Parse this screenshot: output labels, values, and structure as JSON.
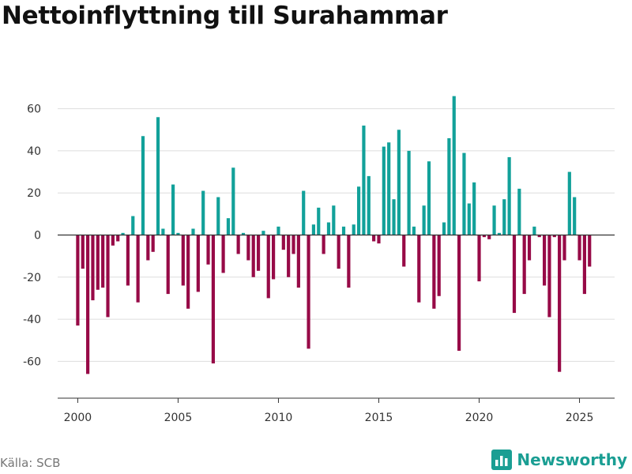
{
  "title": "Nettoinflyttning till Surahammar",
  "source": "Källa: SCB",
  "brand": "Newsworthy",
  "colors": {
    "positive": "#12a19a",
    "negative": "#970a47",
    "grid": "#dddddd",
    "zero_line": "#333333",
    "brand": "#1a9e93"
  },
  "chart_data": {
    "type": "bar",
    "title": "Nettoinflyttning till Surahammar",
    "xlabel": "",
    "ylabel": "",
    "start_year": 2000,
    "periods_per_year": 4,
    "xlim": [
      1999.0,
      2026.75
    ],
    "ylim": [
      -73,
      73
    ],
    "yticks": [
      -60,
      -40,
      -20,
      0,
      20,
      40,
      60
    ],
    "xticks": [
      2000,
      2005,
      2010,
      2015,
      2020,
      2025
    ],
    "values": [
      -43,
      -16,
      -66,
      -31,
      -26,
      -25,
      -39,
      -5,
      -3,
      1,
      -24,
      9,
      -32,
      47,
      -12,
      -8,
      56,
      3,
      -28,
      24,
      1,
      -24,
      -35,
      3,
      -27,
      21,
      -14,
      -61,
      18,
      -18,
      8,
      32,
      -9,
      1,
      -12,
      -20,
      -17,
      2,
      -30,
      -21,
      4,
      -7,
      -20,
      -9,
      -25,
      21,
      -54,
      5,
      13,
      -9,
      6,
      14,
      -16,
      4,
      -25,
      5,
      23,
      52,
      28,
      -3,
      -4,
      42,
      44,
      17,
      50,
      -15,
      40,
      4,
      -32,
      14,
      35,
      -35,
      -29,
      6,
      46,
      66,
      -55,
      39,
      15,
      25,
      -22,
      -1,
      -2,
      14,
      1,
      17,
      37,
      -37,
      22,
      -28,
      -12,
      4,
      -1,
      -24,
      -39,
      -1,
      -65,
      -12,
      30,
      18,
      -12,
      -28,
      -15
    ]
  }
}
